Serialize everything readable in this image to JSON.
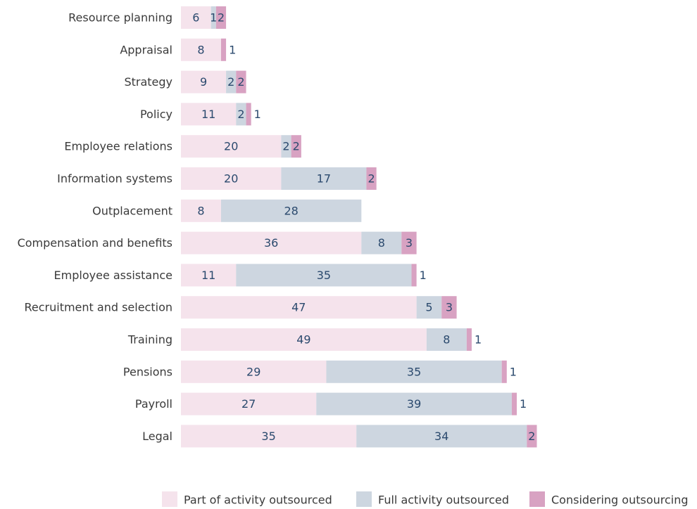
{
  "chart_data": {
    "type": "stacked-bar-horizontal",
    "categories": [
      "Resource planning",
      "Appraisal",
      "Strategy",
      "Policy",
      "Employee relations",
      "Information systems",
      "Outplacement",
      "Compensation and benefits",
      "Employee assistance",
      "Recruitment and selection",
      "Training",
      "Pensions",
      "Payroll",
      "Legal"
    ],
    "series": [
      {
        "name": "Part of activity outsourced",
        "color": "#f5e3ec",
        "values": [
          6,
          8,
          9,
          11,
          20,
          20,
          8,
          36,
          11,
          47,
          49,
          29,
          27,
          35
        ]
      },
      {
        "name": "Full activity outsourced",
        "color": "#cdd6e0",
        "values": [
          1,
          null,
          2,
          2,
          2,
          17,
          28,
          8,
          35,
          5,
          8,
          35,
          39,
          34
        ]
      },
      {
        "name": "Considering outsourcing",
        "color": "#d8a2c2",
        "values": [
          2,
          1,
          2,
          1,
          2,
          2,
          null,
          3,
          1,
          3,
          1,
          1,
          1,
          2
        ]
      }
    ],
    "xlim": [
      0,
      100
    ],
    "legend": "bottom"
  }
}
